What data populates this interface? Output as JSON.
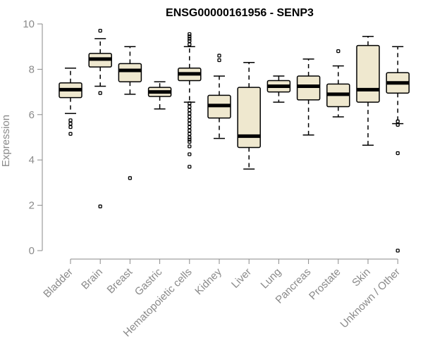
{
  "chart_data": {
    "type": "boxplot",
    "title": "ENSG00000161956 - SENP3",
    "ylabel": "Expression",
    "xlabel": "",
    "ylim": [
      0,
      10
    ],
    "yticks": [
      0,
      2,
      4,
      6,
      8,
      10
    ],
    "box_fill": "#efe8cf",
    "categories": [
      "Bladder",
      "Brain",
      "Breast",
      "Gastric",
      "Hematopoietic cells",
      "Kidney",
      "Liver",
      "Lung",
      "Pancreas",
      "Prostate",
      "Skin",
      "Unknown / Other"
    ],
    "boxes": [
      {
        "min": 6.05,
        "q1": 6.75,
        "median": 7.1,
        "q3": 7.4,
        "max": 8.05,
        "outliers": [
          5.15,
          5.45,
          5.6,
          5.75
        ]
      },
      {
        "min": 7.25,
        "q1": 8.1,
        "median": 8.45,
        "q3": 8.7,
        "max": 9.35,
        "outliers": [
          9.7,
          6.95,
          1.95
        ]
      },
      {
        "min": 6.9,
        "q1": 7.45,
        "median": 7.95,
        "q3": 8.25,
        "max": 9.0,
        "outliers": [
          3.2
        ]
      },
      {
        "min": 6.25,
        "q1": 6.8,
        "median": 7.0,
        "q3": 7.2,
        "max": 7.45,
        "outliers": []
      },
      {
        "min": 6.55,
        "q1": 7.5,
        "median": 7.8,
        "q3": 8.05,
        "max": 9.0,
        "outliers": [
          9.1,
          9.25,
          9.35,
          9.45,
          9.55,
          6.5,
          6.35,
          6.2,
          6.05,
          5.9,
          5.75,
          5.6,
          5.45,
          5.3,
          5.15,
          5.0,
          4.9,
          4.8,
          4.6,
          4.25,
          3.7
        ]
      },
      {
        "min": 4.95,
        "q1": 5.85,
        "median": 6.4,
        "q3": 6.85,
        "max": 7.7,
        "outliers": [
          8.4,
          8.6
        ]
      },
      {
        "min": 3.6,
        "q1": 4.55,
        "median": 5.05,
        "q3": 7.2,
        "max": 8.3,
        "outliers": []
      },
      {
        "min": 6.55,
        "q1": 7.0,
        "median": 7.25,
        "q3": 7.5,
        "max": 7.7,
        "outliers": []
      },
      {
        "min": 5.1,
        "q1": 6.65,
        "median": 7.25,
        "q3": 7.7,
        "max": 8.45,
        "outliers": []
      },
      {
        "min": 5.9,
        "q1": 6.35,
        "median": 6.9,
        "q3": 7.35,
        "max": 8.15,
        "outliers": [
          8.8
        ]
      },
      {
        "min": 4.65,
        "q1": 6.55,
        "median": 7.1,
        "q3": 9.05,
        "max": 9.45,
        "outliers": []
      },
      {
        "min": 5.6,
        "q1": 6.95,
        "median": 7.4,
        "q3": 7.85,
        "max": 9.0,
        "outliers": [
          5.55,
          5.7,
          4.3,
          0.0
        ]
      }
    ]
  }
}
